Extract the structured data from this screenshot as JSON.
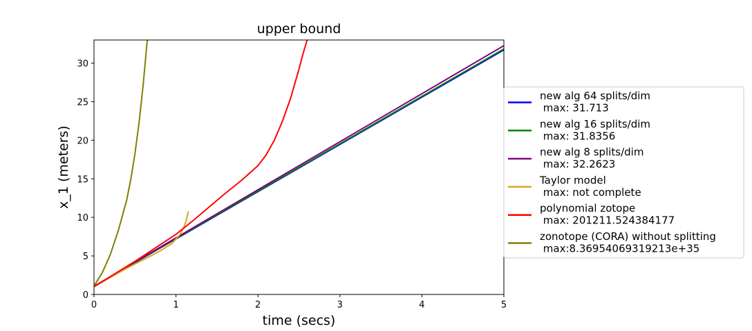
{
  "chart_data": {
    "type": "line",
    "title": "upper bound",
    "xlabel": "time (secs)",
    "ylabel": "x_1 (meters)",
    "xlim": [
      0,
      5
    ],
    "ylim": [
      0,
      33
    ],
    "xticks": [
      0,
      1,
      2,
      3,
      4,
      5
    ],
    "yticks": [
      0,
      5,
      10,
      15,
      20,
      25,
      30
    ],
    "grid": false,
    "legend_position": "right",
    "series": [
      {
        "name_lines": [
          "new alg 64 splits/dim",
          " max: 31.713"
        ],
        "color": "#0000ff",
        "x": [
          0,
          1,
          5
        ],
        "y": [
          1.05,
          7.2,
          31.713
        ]
      },
      {
        "name_lines": [
          "new alg 16 splits/dim",
          " max: 31.8356"
        ],
        "color": "#008000",
        "x": [
          0,
          1,
          5
        ],
        "y": [
          1.05,
          7.25,
          31.8356
        ]
      },
      {
        "name_lines": [
          "new alg 8 splits/dim",
          " max: 32.2623"
        ],
        "color": "#800080",
        "x": [
          0,
          1,
          5
        ],
        "y": [
          1.05,
          7.35,
          32.2623
        ]
      },
      {
        "name_lines": [
          "Taylor model",
          " max: not complete"
        ],
        "color": "#daa520",
        "x": [
          0,
          0.2,
          0.4,
          0.6,
          0.8,
          0.95,
          1.05,
          1.1,
          1.13,
          1.15
        ],
        "y": [
          1.0,
          2.2,
          3.4,
          4.5,
          5.6,
          6.6,
          7.8,
          8.8,
          9.8,
          10.7
        ]
      },
      {
        "name_lines": [
          "polynomial zotope",
          " max: 201211.524384177"
        ],
        "color": "#ff0000",
        "x": [
          0,
          0.5,
          1,
          1.2,
          1.4,
          1.6,
          1.8,
          2.0,
          2.1,
          2.2,
          2.3,
          2.4,
          2.5,
          2.55,
          2.6
        ],
        "y": [
          1.0,
          4.3,
          7.8,
          9.5,
          11.3,
          13.1,
          14.8,
          16.7,
          18.1,
          20.0,
          22.5,
          25.5,
          29.2,
          31.2,
          33.0
        ]
      },
      {
        "name_lines": [
          "zonotope (CORA) without splitting",
          " max:8.36954069319213e+35"
        ],
        "color": "#808000",
        "x": [
          0,
          0.1,
          0.2,
          0.3,
          0.4,
          0.45,
          0.5,
          0.55,
          0.6,
          0.63,
          0.65
        ],
        "y": [
          1.1,
          2.8,
          5.2,
          8.4,
          12.3,
          15.0,
          18.3,
          22.3,
          27.2,
          30.7,
          33.0
        ]
      }
    ]
  }
}
